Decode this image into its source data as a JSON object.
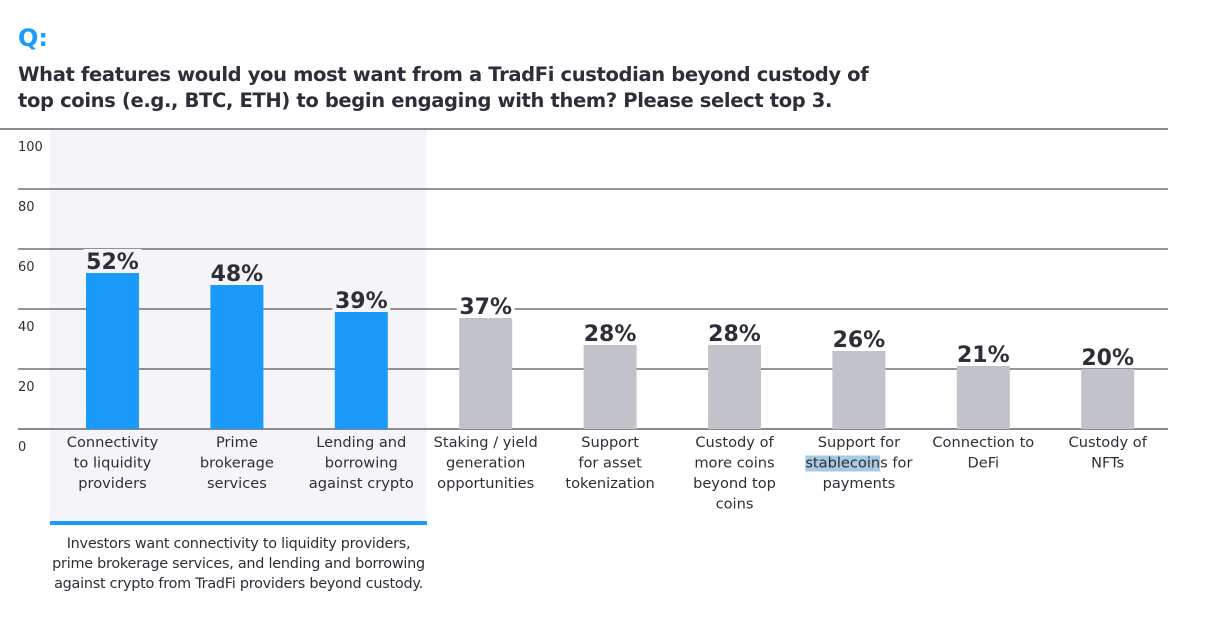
{
  "header": {
    "q_mark": "Q:",
    "question": "What features would you most want from a TradFi custodian beyond custody of top coins (e.g., BTC, ETH) to begin engaging with them? Please select top 3."
  },
  "takeaway": "Investors want connectivity to liquidity providers, prime brokerage services, and lending and borrowing against crypto from TradFi providers beyond custody.",
  "colors": {
    "accent": "#1a9afa",
    "muted_bar": "#c2c3ca",
    "highlight_band": "#f4f4f9",
    "text": "#2e2e38",
    "selection": "#a7c9e1"
  },
  "chart_data": {
    "type": "bar",
    "title": "What features would you most want from a TradFi custodian beyond custody of top coins (e.g., BTC, ETH) to begin engaging with them? Please select top 3.",
    "xlabel": "",
    "ylabel": "",
    "ylim": [
      0,
      100
    ],
    "yticks": [
      0,
      20,
      40,
      60,
      80,
      100
    ],
    "grid": true,
    "categories": [
      [
        "Connectivity",
        "to liquidity",
        "providers"
      ],
      [
        "Prime",
        "brokerage",
        "services"
      ],
      [
        "Lending and",
        "borrowing",
        "against crypto"
      ],
      [
        "Staking / yield",
        "generation",
        "opportunities"
      ],
      [
        "Support",
        "for asset",
        "tokenization"
      ],
      [
        "Custody of",
        "more coins",
        "beyond top",
        "coins"
      ],
      [
        "Support for",
        "stablecoins for",
        "payments"
      ],
      [
        "Connection to",
        "DeFi"
      ],
      [
        "Custody of",
        "NFTs"
      ]
    ],
    "values": [
      52,
      48,
      39,
      37,
      28,
      28,
      26,
      21,
      20
    ],
    "value_labels": [
      "52%",
      "48%",
      "39%",
      "37%",
      "28%",
      "28%",
      "26%",
      "21%",
      "20%"
    ],
    "highlighted": [
      true,
      true,
      true,
      false,
      false,
      false,
      false,
      false,
      false
    ],
    "selected_text": {
      "category_index": 6,
      "line_index": 1,
      "text": "stablecoin"
    }
  }
}
